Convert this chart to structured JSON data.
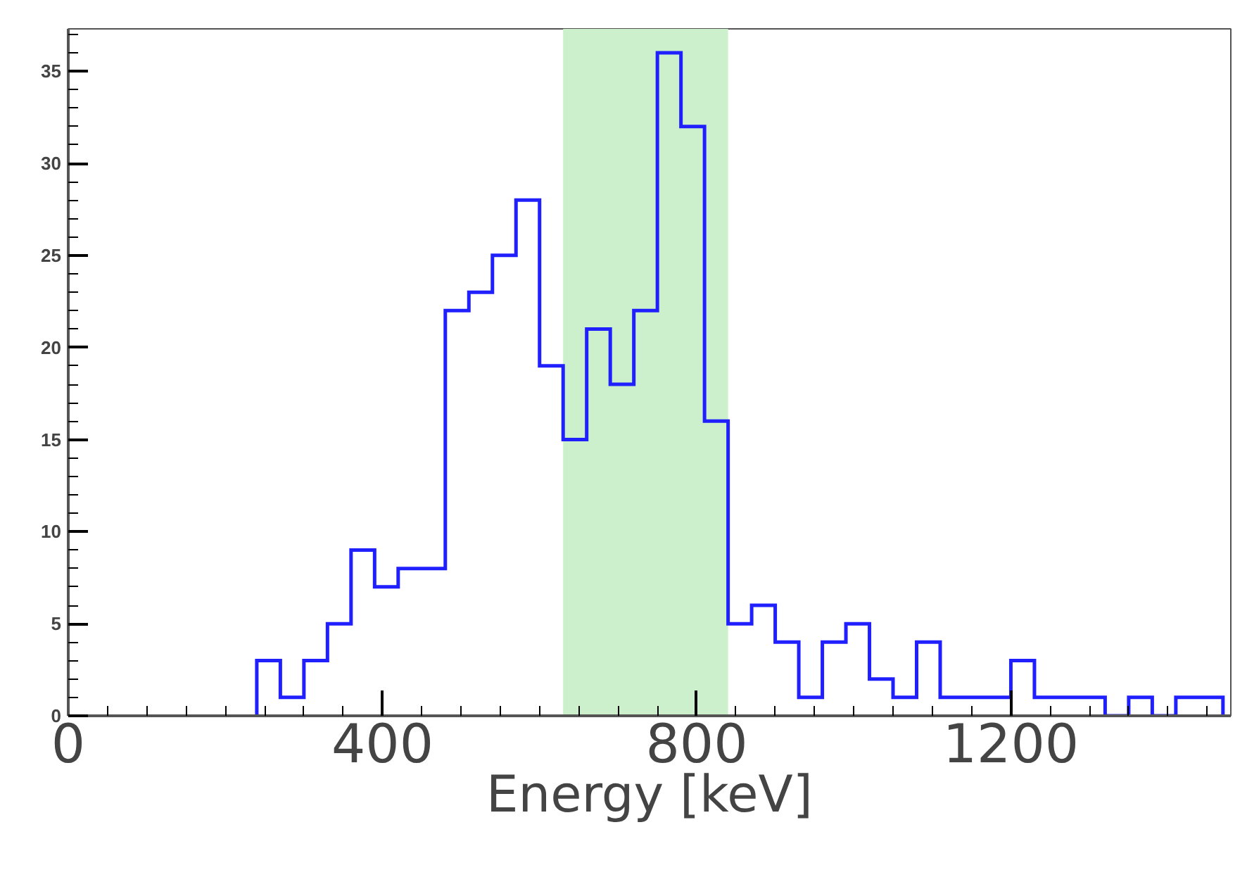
{
  "chart_data": {
    "type": "histogram",
    "xlabel": "Energy [keV]",
    "bins": [
      240,
      270,
      300,
      330,
      360,
      390,
      420,
      450,
      480,
      510,
      540,
      570,
      600,
      630,
      660,
      690,
      720,
      750,
      780,
      810,
      840,
      870,
      900,
      930,
      960,
      990,
      1020,
      1050,
      1080,
      1110,
      1140,
      1170,
      1200,
      1230,
      1260,
      1290,
      1320,
      1350,
      1380,
      1410,
      1440,
      1470
    ],
    "values": [
      3,
      1,
      3,
      5,
      9,
      7,
      8,
      8,
      22,
      23,
      25,
      28,
      19,
      15,
      21,
      18,
      22,
      36,
      32,
      16,
      5,
      6,
      4,
      1,
      4,
      5,
      2,
      1,
      4,
      1,
      1,
      1,
      3,
      1,
      1,
      1,
      0,
      1,
      0,
      1,
      1
    ],
    "color": "#2020ff",
    "xlim": [
      0,
      1480
    ],
    "xticks": [
      0,
      400,
      800,
      1200
    ],
    "ylim": [
      0,
      37.3
    ],
    "yticks": [
      0,
      5,
      10,
      15,
      20,
      25,
      30,
      35
    ],
    "bands": [
      {
        "axis": "x",
        "from": 630,
        "to": 840,
        "color": "#ccf0cc"
      }
    ],
    "grid": false
  }
}
